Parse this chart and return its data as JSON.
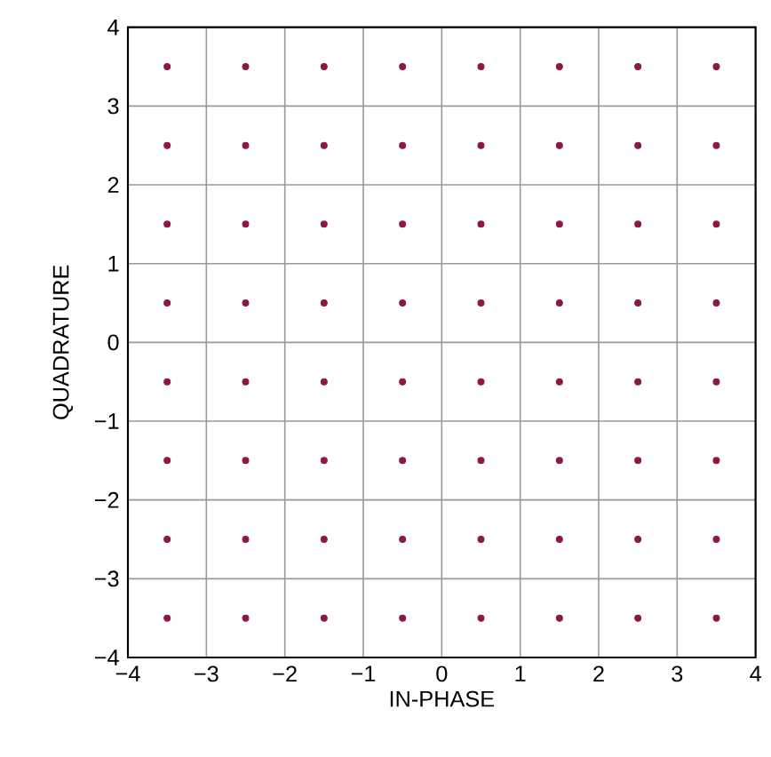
{
  "chart_data": {
    "type": "scatter",
    "xlabel": "IN-PHASE",
    "ylabel": "QUADRATURE",
    "xlim": [
      -4,
      4
    ],
    "ylim": [
      -4,
      4
    ],
    "xticks": [
      {
        "value": -4,
        "label": "−4"
      },
      {
        "value": -3,
        "label": "−3"
      },
      {
        "value": -2,
        "label": "−2"
      },
      {
        "value": -1,
        "label": "−1"
      },
      0,
      1,
      2,
      3,
      4
    ],
    "yticks": [
      {
        "value": -4,
        "label": "−4"
      },
      {
        "value": -3,
        "label": "−3"
      },
      {
        "value": -2,
        "label": "−2"
      },
      {
        "value": -1,
        "label": "−1"
      },
      0,
      1,
      2,
      3,
      4
    ],
    "grid": true,
    "series": [
      {
        "color": "#8b1a3a",
        "x": [
          -3.5,
          -2.5,
          -1.5,
          -0.5,
          0.5,
          1.5,
          2.5,
          3.5,
          -3.5,
          -2.5,
          -1.5,
          -0.5,
          0.5,
          1.5,
          2.5,
          3.5,
          -3.5,
          -2.5,
          -1.5,
          -0.5,
          0.5,
          1.5,
          2.5,
          3.5,
          -3.5,
          -2.5,
          -1.5,
          -0.5,
          0.5,
          1.5,
          2.5,
          3.5,
          -3.5,
          -2.5,
          -1.5,
          -0.5,
          0.5,
          1.5,
          2.5,
          3.5,
          -3.5,
          -2.5,
          -1.5,
          -0.5,
          0.5,
          1.5,
          2.5,
          3.5,
          -3.5,
          -2.5,
          -1.5,
          -0.5,
          0.5,
          1.5,
          2.5,
          3.5,
          -3.5,
          -2.5,
          -1.5,
          -0.5,
          0.5,
          1.5,
          2.5,
          3.5
        ],
        "values": [
          3.5,
          3.5,
          3.5,
          3.5,
          3.5,
          3.5,
          3.5,
          3.5,
          2.5,
          2.5,
          2.5,
          2.5,
          2.5,
          2.5,
          2.5,
          2.5,
          1.5,
          1.5,
          1.5,
          1.5,
          1.5,
          1.5,
          1.5,
          1.5,
          0.5,
          0.5,
          0.5,
          0.5,
          0.5,
          0.5,
          0.5,
          0.5,
          -0.5,
          -0.5,
          -0.5,
          -0.5,
          -0.5,
          -0.5,
          -0.5,
          -0.5,
          -1.5,
          -1.5,
          -1.5,
          -1.5,
          -1.5,
          -1.5,
          -1.5,
          -1.5,
          -2.5,
          -2.5,
          -2.5,
          -2.5,
          -2.5,
          -2.5,
          -2.5,
          -2.5,
          -3.5,
          -3.5,
          -3.5,
          -3.5,
          -3.5,
          -3.5,
          -3.5,
          -3.5
        ]
      }
    ]
  }
}
